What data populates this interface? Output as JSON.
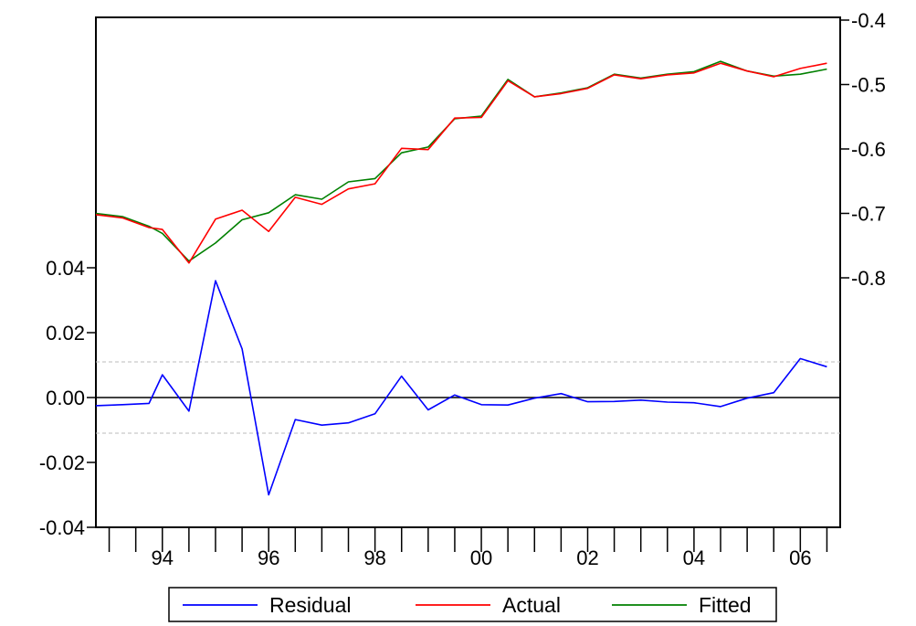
{
  "chart_data": {
    "type": "line",
    "title": "",
    "xlabel": "",
    "x_range": [
      1992.75,
      2006.75
    ],
    "x_ticks": [
      "94",
      "96",
      "98",
      "00",
      "02",
      "04",
      "06"
    ],
    "x_tick_values": [
      1994,
      1996,
      1998,
      2000,
      2002,
      2004,
      2006
    ],
    "x": [
      1992.75,
      1993.25,
      1993.75,
      1994.0,
      1994.5,
      1995.0,
      1995.5,
      1996.0,
      1996.5,
      1997.0,
      1997.5,
      1998.0,
      1998.5,
      1999.0,
      1999.5,
      2000.0,
      2000.5,
      2001.0,
      2001.5,
      2002.0,
      2002.5,
      2003.0,
      2003.5,
      2004.0,
      2004.5,
      2005.0,
      2005.5,
      2006.0,
      2006.5
    ],
    "left_axis": {
      "range": [
        -0.04,
        0.04
      ],
      "ticks": [
        "0.04",
        "0.02",
        "0.00",
        "-0.02",
        "-0.04"
      ],
      "tick_values": [
        0.04,
        0.02,
        0.0,
        -0.02,
        -0.04
      ],
      "reference_lines": [
        0.011,
        -0.011
      ],
      "zero_line": 0.0
    },
    "right_axis": {
      "range": [
        -0.8,
        -0.4
      ],
      "ticks": [
        "-0.4",
        "-0.5",
        "-0.6",
        "-0.7",
        "-0.8"
      ],
      "tick_values": [
        -0.4,
        -0.5,
        -0.6,
        -0.7,
        -0.8
      ]
    },
    "series": [
      {
        "name": "Residual",
        "axis": "left",
        "color": "#0000ff",
        "values": [
          -0.0025,
          -0.0022,
          -0.0018,
          0.007,
          -0.0042,
          0.036,
          0.015,
          -0.03,
          -0.0068,
          -0.0085,
          -0.0078,
          -0.005,
          0.0066,
          -0.0038,
          0.0008,
          -0.0022,
          -0.0023,
          -0.0002,
          0.0012,
          -0.0013,
          -0.0012,
          -0.0008,
          -0.0014,
          -0.0016,
          -0.0028,
          -0.0002,
          0.0015,
          0.012,
          0.0095
        ]
      },
      {
        "name": "Actual",
        "axis": "right",
        "color": "#ff0000",
        "values": [
          -0.702,
          -0.707,
          -0.722,
          -0.725,
          -0.777,
          -0.709,
          -0.695,
          -0.728,
          -0.675,
          -0.686,
          -0.662,
          -0.654,
          -0.599,
          -0.601,
          -0.552,
          -0.551,
          -0.494,
          -0.519,
          -0.514,
          -0.506,
          -0.485,
          -0.491,
          -0.485,
          -0.482,
          -0.467,
          -0.479,
          -0.488,
          -0.475,
          -0.467
        ]
      },
      {
        "name": "Fitted",
        "axis": "right",
        "color": "#008000",
        "values": [
          -0.7,
          -0.705,
          -0.72,
          -0.731,
          -0.774,
          -0.746,
          -0.71,
          -0.699,
          -0.671,
          -0.678,
          -0.651,
          -0.646,
          -0.606,
          -0.597,
          -0.553,
          -0.549,
          -0.492,
          -0.519,
          -0.513,
          -0.505,
          -0.484,
          -0.49,
          -0.484,
          -0.48,
          -0.464,
          -0.479,
          -0.487,
          -0.484,
          -0.476
        ]
      }
    ],
    "grid": false,
    "legend_position": "bottom-center"
  }
}
